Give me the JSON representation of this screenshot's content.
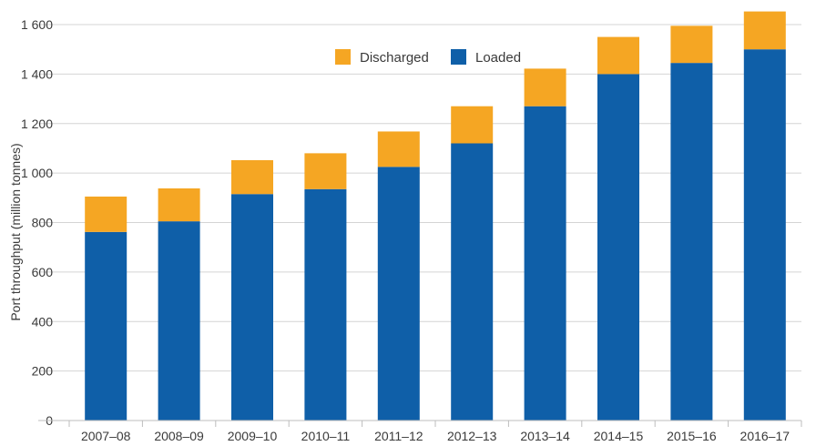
{
  "chart_data": {
    "type": "bar",
    "stacked": true,
    "ylabel": "Port throughput (million tonnes)",
    "xlabel": "",
    "ylim": [
      0,
      1600
    ],
    "yticks": [
      0,
      200,
      400,
      600,
      800,
      1000,
      1200,
      1400,
      1600
    ],
    "ytick_labels": [
      "0",
      "200",
      "400",
      "600",
      "800",
      "1 000",
      "1 200",
      "1 400",
      "1 600"
    ],
    "categories": [
      "2007–08",
      "2008–09",
      "2009–10",
      "2010–11",
      "2011–12",
      "2012–13",
      "2013–14",
      "2014–15",
      "2015–16",
      "2016–17"
    ],
    "series": [
      {
        "name": "Loaded",
        "color": "#0f5fa8",
        "values": [
          762,
          805,
          915,
          935,
          1025,
          1120,
          1270,
          1400,
          1445,
          1500
        ]
      },
      {
        "name": "Discharged",
        "color": "#f5a623",
        "values": [
          143,
          133,
          137,
          145,
          143,
          150,
          152,
          150,
          150,
          153
        ]
      }
    ],
    "legend": {
      "position": "top-center",
      "order": [
        "Discharged",
        "Loaded"
      ]
    },
    "grid": true
  }
}
